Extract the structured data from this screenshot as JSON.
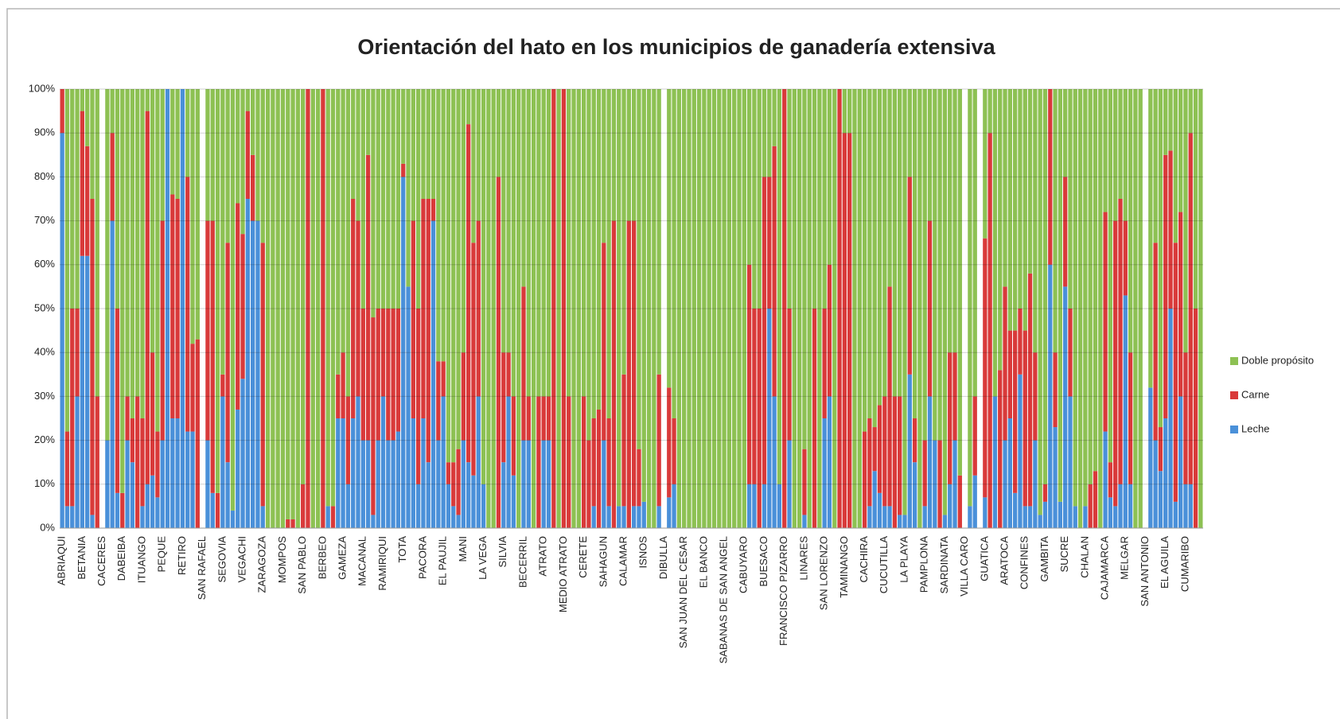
{
  "chart_data": {
    "type": "stacked_bar_100",
    "title": "Orientación del hato en los municipios de ganadería extensiva",
    "categories": [
      "ABRIAQUI",
      null,
      null,
      null,
      "BETANIA",
      null,
      null,
      null,
      "CACERES",
      null,
      null,
      null,
      "DABEIBA",
      null,
      null,
      null,
      "ITUANGO",
      null,
      null,
      null,
      "PEQUE",
      null,
      null,
      null,
      "RETIRO",
      null,
      null,
      null,
      "SAN RAFAEL",
      null,
      null,
      null,
      "SEGOVIA",
      null,
      null,
      null,
      "VEGACHI",
      null,
      null,
      null,
      "ZARAGOZA",
      null,
      null,
      null,
      "MOMPOS",
      null,
      null,
      null,
      "SAN PABLO",
      null,
      null,
      null,
      "BERBEO",
      null,
      null,
      null,
      "GAMEZA",
      null,
      null,
      null,
      "MACANAL",
      null,
      null,
      null,
      "RAMIRIQUI",
      null,
      null,
      null,
      "TOTA",
      null,
      null,
      null,
      "PACORA",
      null,
      null,
      null,
      "EL PAUJIL",
      null,
      null,
      null,
      "MANI",
      null,
      null,
      null,
      "LA VEGA",
      null,
      null,
      null,
      "SILVIA",
      null,
      null,
      null,
      "BECERRIL",
      null,
      null,
      null,
      "ATRATO",
      null,
      null,
      null,
      "MEDIO ATRATO",
      null,
      null,
      null,
      "CERETE",
      null,
      null,
      null,
      "SAHAGUN",
      null,
      null,
      null,
      "CALAMAR",
      null,
      null,
      null,
      "ISNOS",
      null,
      null,
      null,
      "DIBULLA",
      null,
      null,
      null,
      "SAN JUAN DEL CESAR",
      null,
      null,
      null,
      "EL BANCO",
      null,
      null,
      null,
      "SABANAS DE SAN ANGEL",
      null,
      null,
      null,
      "CABUYARO",
      null,
      null,
      null,
      "BUESACO",
      null,
      null,
      null,
      "FRANCISCO PIZARRO",
      null,
      null,
      null,
      "LINARES",
      null,
      null,
      null,
      "SAN LORENZO",
      null,
      null,
      null,
      "TAMINANGO",
      null,
      null,
      null,
      "CACHIRA",
      null,
      null,
      null,
      "CUCUTILLA",
      null,
      null,
      null,
      "LA PLAYA",
      null,
      null,
      null,
      "PAMPLONA",
      null,
      null,
      null,
      "SARDINATA",
      null,
      null,
      null,
      "VILLA CARO",
      null,
      null,
      null,
      "GUATICA",
      null,
      null,
      null,
      "ARATOCA",
      null,
      null,
      null,
      "CONFINES",
      null,
      null,
      null,
      "GAMBITA",
      null,
      null,
      null,
      "SUCRE",
      null,
      null,
      null,
      "CHALAN",
      null,
      null,
      null,
      "CAJAMARCA",
      null,
      null,
      null,
      "MELGAR",
      null,
      null,
      null,
      "SAN ANTONIO",
      null,
      null,
      null,
      "EL AGUILA",
      null,
      null,
      null,
      "CUMARIBO",
      null,
      null,
      null
    ],
    "series": [
      {
        "name": "Leche",
        "color": "#4a90d9",
        "values": [
          90,
          5,
          5,
          30,
          62,
          62,
          3,
          0,
          0,
          20,
          70,
          8,
          0,
          20,
          15,
          0,
          5,
          10,
          12,
          7,
          20,
          100,
          25,
          25,
          100,
          22,
          22,
          0,
          0,
          20,
          8,
          0,
          30,
          15,
          4,
          27,
          34,
          75,
          70,
          70,
          5,
          0,
          0,
          0,
          0,
          0,
          0,
          0,
          0,
          0,
          0,
          0,
          0,
          5,
          0,
          25,
          25,
          10,
          25,
          30,
          20,
          20,
          3,
          20,
          30,
          20,
          20,
          22,
          80,
          55,
          25,
          10,
          25,
          15,
          70,
          20,
          30,
          10,
          5,
          3,
          20,
          15,
          12,
          30,
          10,
          0,
          0,
          0,
          15,
          30,
          12,
          0,
          20,
          20,
          0,
          0,
          20,
          20,
          0,
          0,
          0,
          0,
          0,
          0,
          0,
          0,
          5,
          0,
          20,
          5,
          0,
          5,
          5,
          0,
          5,
          5,
          6,
          0,
          0,
          5,
          0,
          7,
          10,
          0,
          0,
          0,
          0,
          0,
          0,
          0,
          0,
          0,
          0,
          0,
          0,
          0,
          0,
          10,
          10,
          0,
          10,
          50,
          30,
          10,
          0,
          20,
          0,
          0,
          3,
          0,
          0,
          0,
          25,
          30,
          0,
          0,
          0,
          0,
          0,
          0,
          0,
          5,
          13,
          8,
          5,
          5,
          0,
          3,
          3,
          35,
          15,
          0,
          5,
          30,
          20,
          0,
          3,
          10,
          20,
          0,
          0,
          5,
          12,
          0,
          7,
          0,
          30,
          0,
          20,
          25,
          8,
          35,
          5,
          5,
          20,
          3,
          6,
          60,
          23,
          6,
          55,
          30,
          5,
          0,
          5,
          0,
          0,
          0,
          22,
          7,
          5,
          10,
          53,
          10,
          0,
          0,
          0,
          32,
          20,
          13,
          25,
          50,
          6,
          30,
          10,
          10,
          0,
          0
        ]
      },
      {
        "name": "Carne",
        "color": "#d93a3a",
        "values": [
          10,
          17,
          45,
          20,
          33,
          25,
          72,
          30,
          0,
          0,
          20,
          42,
          8,
          10,
          10,
          30,
          20,
          85,
          28,
          15,
          50,
          0,
          51,
          50,
          0,
          58,
          20,
          43,
          0,
          50,
          62,
          8,
          5,
          50,
          0,
          47,
          33,
          20,
          15,
          0,
          60,
          0,
          0,
          0,
          0,
          2,
          2,
          0,
          10,
          100,
          0,
          0,
          100,
          0,
          5,
          10,
          15,
          20,
          50,
          40,
          30,
          65,
          45,
          30,
          20,
          30,
          30,
          28,
          3,
          0,
          45,
          40,
          50,
          60,
          5,
          18,
          8,
          5,
          10,
          15,
          20,
          77,
          53,
          40,
          0,
          0,
          0,
          80,
          25,
          10,
          18,
          0,
          35,
          10,
          0,
          30,
          10,
          10,
          100,
          0,
          100,
          30,
          0,
          0,
          30,
          20,
          20,
          27,
          45,
          20,
          70,
          0,
          30,
          70,
          65,
          13,
          0,
          0,
          0,
          30,
          0,
          25,
          15,
          0,
          0,
          0,
          0,
          0,
          0,
          0,
          0,
          0,
          0,
          0,
          0,
          0,
          0,
          50,
          40,
          50,
          70,
          30,
          57,
          0,
          100,
          30,
          0,
          0,
          15,
          0,
          50,
          0,
          25,
          30,
          0,
          100,
          90,
          90,
          0,
          0,
          22,
          20,
          10,
          20,
          25,
          50,
          30,
          27,
          0,
          45,
          10,
          0,
          15,
          40,
          0,
          20,
          0,
          30,
          20,
          12,
          0,
          0,
          18,
          0,
          59,
          90,
          0,
          36,
          35,
          20,
          37,
          15,
          40,
          53,
          20,
          0,
          4,
          40,
          17,
          0,
          25,
          20,
          0,
          0,
          0,
          10,
          13,
          0,
          50,
          8,
          65,
          65,
          17,
          30,
          0,
          0,
          0,
          0,
          45,
          10,
          60,
          36,
          59,
          42,
          30,
          80,
          50,
          0
        ]
      },
      {
        "name": "Doble propósito",
        "color": "#8dc153",
        "values": [
          0,
          78,
          50,
          50,
          5,
          13,
          25,
          70,
          0,
          80,
          10,
          50,
          92,
          70,
          75,
          70,
          75,
          5,
          60,
          78,
          30,
          0,
          24,
          25,
          0,
          20,
          58,
          57,
          0,
          30,
          30,
          92,
          65,
          35,
          96,
          26,
          33,
          5,
          15,
          30,
          35,
          100,
          100,
          100,
          100,
          98,
          98,
          100,
          90,
          0,
          100,
          100,
          0,
          95,
          95,
          65,
          60,
          70,
          25,
          30,
          50,
          15,
          52,
          50,
          50,
          50,
          50,
          50,
          17,
          45,
          30,
          50,
          25,
          25,
          25,
          62,
          62,
          85,
          85,
          82,
          60,
          8,
          35,
          30,
          90,
          100,
          100,
          20,
          60,
          60,
          70,
          100,
          45,
          70,
          100,
          70,
          70,
          70,
          0,
          100,
          0,
          70,
          100,
          100,
          70,
          80,
          75,
          73,
          35,
          75,
          30,
          95,
          65,
          30,
          30,
          82,
          94,
          100,
          100,
          65,
          0,
          68,
          75,
          100,
          100,
          100,
          100,
          100,
          100,
          100,
          100,
          100,
          100,
          100,
          100,
          100,
          100,
          40,
          50,
          50,
          20,
          20,
          13,
          90,
          0,
          50,
          100,
          100,
          82,
          100,
          50,
          100,
          50,
          40,
          100,
          0,
          10,
          10,
          100,
          100,
          78,
          75,
          77,
          72,
          70,
          45,
          70,
          70,
          97,
          20,
          75,
          100,
          80,
          30,
          80,
          80,
          97,
          60,
          60,
          88,
          0,
          95,
          70,
          0,
          34,
          10,
          70,
          64,
          45,
          55,
          55,
          50,
          55,
          42,
          60,
          97,
          90,
          0,
          60,
          94,
          20,
          50,
          95,
          100,
          95,
          90,
          87,
          100,
          28,
          85,
          30,
          25,
          30,
          60,
          100,
          100,
          0,
          68,
          35,
          77,
          15,
          14,
          35,
          28,
          60,
          10,
          50,
          100
        ]
      }
    ],
    "ylim": [
      0,
      100
    ],
    "yticks": [
      {
        "value": 0,
        "label": "0%"
      },
      {
        "value": 10,
        "label": "10%"
      },
      {
        "value": 20,
        "label": "20%"
      },
      {
        "value": 30,
        "label": "30%"
      },
      {
        "value": 40,
        "label": "40%"
      },
      {
        "value": 50,
        "label": "50%"
      },
      {
        "value": 60,
        "label": "60%"
      },
      {
        "value": 70,
        "label": "70%"
      },
      {
        "value": 80,
        "label": "80%"
      },
      {
        "value": 90,
        "label": "90%"
      },
      {
        "value": 100,
        "label": "100%"
      }
    ],
    "grid": true,
    "legend": "right"
  }
}
